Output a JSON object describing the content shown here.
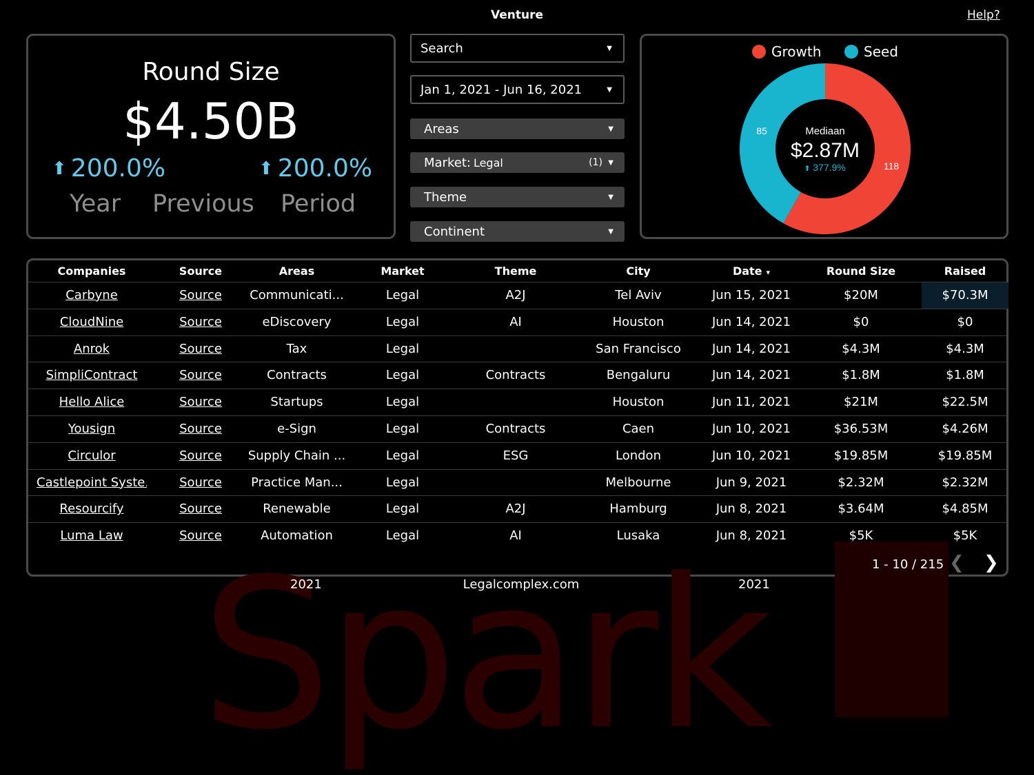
{
  "header": {
    "title": "Venture",
    "help_label": "Help?"
  },
  "kpi": {
    "title": "Round Size",
    "value": "$4.50B",
    "delta_left": "200.0%",
    "delta_right": "200.0%",
    "labels": [
      "Year",
      "Previous",
      "Period"
    ],
    "delta_color": "#66c8e8"
  },
  "filters": {
    "search": "Search",
    "date_range": "Jan 1, 2021 - Jun 16, 2021",
    "areas": "Areas",
    "market_label": "Market:",
    "market_value": "Legal",
    "market_count": "(1)",
    "theme": "Theme",
    "continent": "Continent"
  },
  "donut": {
    "legend": [
      {
        "name": "Growth",
        "color": "#f04437"
      },
      {
        "name": "Seed",
        "color": "#19b5cf"
      }
    ],
    "center_label": "Mediaan",
    "center_value": "$2.87M",
    "center_delta": "377.9%",
    "growth_count": "118",
    "seed_count": "85"
  },
  "chart_data": {
    "type": "pie",
    "categories": [
      "Growth",
      "Seed"
    ],
    "values": [
      118,
      85
    ],
    "colors": [
      "#f04437",
      "#19b5cf"
    ]
  },
  "table": {
    "columns": [
      "Companies",
      "Source",
      "Areas",
      "Market",
      "Theme",
      "City",
      "Date",
      "Round Size",
      "Raised"
    ],
    "sort_indicator": "▾",
    "rows": [
      [
        "Carbyne",
        "Source",
        "Communicati...",
        "Legal",
        "A2J",
        "Tel Aviv",
        "Jun 15, 2021",
        "$20M",
        "$70.3M"
      ],
      [
        "CloudNine",
        "Source",
        "eDiscovery",
        "Legal",
        "AI",
        "Houston",
        "Jun 14, 2021",
        "$0",
        "$0"
      ],
      [
        "Anrok",
        "Source",
        "Tax",
        "Legal",
        "",
        "San Francisco",
        "Jun 14, 2021",
        "$4.3M",
        "$4.3M"
      ],
      [
        "SimpliContract",
        "Source",
        "Contracts",
        "Legal",
        "Contracts",
        "Bengaluru",
        "Jun 14, 2021",
        "$1.8M",
        "$1.8M"
      ],
      [
        "Hello Alice",
        "Source",
        "Startups",
        "Legal",
        "",
        "Houston",
        "Jun 11, 2021",
        "$21M",
        "$22.5M"
      ],
      [
        "Yousign",
        "Source",
        "e-Sign",
        "Legal",
        "Contracts",
        "Caen",
        "Jun 10, 2021",
        "$36.53M",
        "$4.26M"
      ],
      [
        "Circulor",
        "Source",
        "Supply Chain ...",
        "Legal",
        "ESG",
        "London",
        "Jun 10, 2021",
        "$19.85M",
        "$19.85M"
      ],
      [
        "Castlepoint Syste...",
        "Source",
        "Practice Man...",
        "Legal",
        "",
        "Melbourne",
        "Jun 9, 2021",
        "$2.32M",
        "$2.32M"
      ],
      [
        "Resourcify",
        "Source",
        "Renewable",
        "Legal",
        "A2J",
        "Hamburg",
        "Jun 8, 2021",
        "$3.64M",
        "$4.85M"
      ],
      [
        "Luma Law",
        "Source",
        "Automation",
        "Legal",
        "AI",
        "Lusaka",
        "Jun 8, 2021",
        "$5K",
        "$5K"
      ]
    ],
    "pager": "1 - 10 / 215"
  },
  "footer": {
    "left": "2021",
    "center": "Legalcomplex.com",
    "right": "2021"
  }
}
